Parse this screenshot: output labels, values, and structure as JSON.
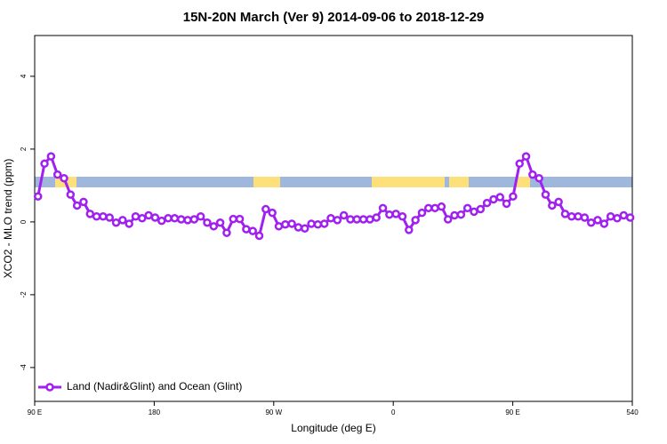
{
  "chart_data": {
    "type": "line",
    "title": "15N-20N March (Ver 9)   2014-09-06 to 2018-12-29",
    "x_label": "Longitude (deg E)",
    "y_label": "XCO2 - MLO trend (ppm)",
    "xlim": [
      90,
      540
    ],
    "ylim": [
      -4.93,
      5.12
    ],
    "xticks": [
      {
        "value": 90,
        "label": "90 E"
      },
      180,
      {
        "value": 270,
        "label": "90 W"
      },
      {
        "value": 360,
        "label": "0"
      },
      {
        "value": 450,
        "label": "90 E"
      },
      540
    ],
    "yticks": [
      -4,
      -2,
      0,
      2,
      4
    ],
    "legend": "bottom-left",
    "x": [
      92.5,
      97.4,
      102.3,
      107.2,
      112.1,
      117,
      121.9,
      126.8,
      131.7,
      136.6,
      141.5,
      146.4,
      151.3,
      156.2,
      161.1,
      166,
      170.9,
      175.8,
      180.7,
      185.6,
      190.5,
      195.4,
      200.3,
      205.2,
      210.1,
      215,
      219.9,
      224.8,
      229.7,
      234.6,
      239.5,
      244.4,
      249.3,
      254.2,
      259.1,
      264,
      268.9,
      273.8,
      278.7,
      283.6,
      288.5,
      293.4,
      298.3,
      303.2,
      308.1,
      313,
      317.9,
      322.8,
      327.7,
      332.6,
      337.5,
      342.4,
      347.3,
      352.2,
      357.1,
      362,
      366.9,
      371.8,
      376.7,
      381.6,
      386.5,
      391.4,
      396.3,
      401.2,
      406.1,
      411,
      415.9,
      420.8,
      425.7,
      430.6,
      435.5,
      440.4,
      445.3,
      450.2,
      455.1,
      460,
      464.9,
      469.8,
      474.7,
      479.6,
      484.5,
      489.4,
      494.3,
      499.2,
      504.1,
      509,
      513.9,
      518.8,
      523.7,
      528.6,
      533.5,
      538.4
    ],
    "series": [
      {
        "name": "Land (Nadir&Glint) and Ocean (Glint)",
        "color": "#a020f0",
        "values": [
          0.7,
          1.6,
          1.8,
          1.3,
          1.2,
          0.75,
          0.45,
          0.55,
          0.22,
          0.15,
          0.15,
          0.12,
          -0.02,
          0.05,
          -0.05,
          0.15,
          0.1,
          0.18,
          0.12,
          0.03,
          0.1,
          0.1,
          0.07,
          0.05,
          0.07,
          0.15,
          -0.02,
          -0.12,
          -0.02,
          -0.3,
          0.08,
          0.08,
          -0.2,
          -0.25,
          -0.38,
          0.35,
          0.25,
          -0.12,
          -0.07,
          -0.05,
          -0.15,
          -0.18,
          -0.05,
          -0.07,
          -0.05,
          0.1,
          0.05,
          0.18,
          0.07,
          0.07,
          0.07,
          0.07,
          0.12,
          0.38,
          0.2,
          0.22,
          0.15,
          -0.22,
          0.05,
          0.25,
          0.38,
          0.38,
          0.42,
          0.07,
          0.18,
          0.2,
          0.38,
          0.28,
          0.35,
          0.52,
          0.62,
          0.68,
          0.5,
          0.7,
          1.6,
          1.8,
          1.3,
          1.2,
          0.75,
          0.45,
          0.55,
          0.22,
          0.15,
          0.15,
          0.12,
          -0.02,
          0.05,
          -0.05,
          0.15,
          0.1,
          0.18,
          0.12
        ]
      }
    ]
  }
}
